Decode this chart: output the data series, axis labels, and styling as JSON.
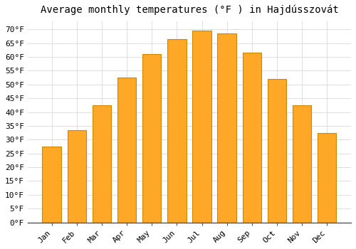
{
  "title": "Average monthly temperatures (°F ) in Hajdússzovát",
  "months": [
    "Jan",
    "Feb",
    "Mar",
    "Apr",
    "May",
    "Jun",
    "Jul",
    "Aug",
    "Sep",
    "Oct",
    "Nov",
    "Dec"
  ],
  "values": [
    27.5,
    33.5,
    42.5,
    52.5,
    61.0,
    66.5,
    69.5,
    68.5,
    61.5,
    52.0,
    42.5,
    32.5
  ],
  "bar_color": "#FFA726",
  "bar_edge_color": "#CC8800",
  "ylim": [
    0,
    73
  ],
  "yticks": [
    0,
    5,
    10,
    15,
    20,
    25,
    30,
    35,
    40,
    45,
    50,
    55,
    60,
    65,
    70
  ],
  "background_color": "#FFFFFF",
  "grid_color": "#DDDDDD",
  "title_fontsize": 10,
  "tick_fontsize": 8,
  "font_family": "monospace"
}
